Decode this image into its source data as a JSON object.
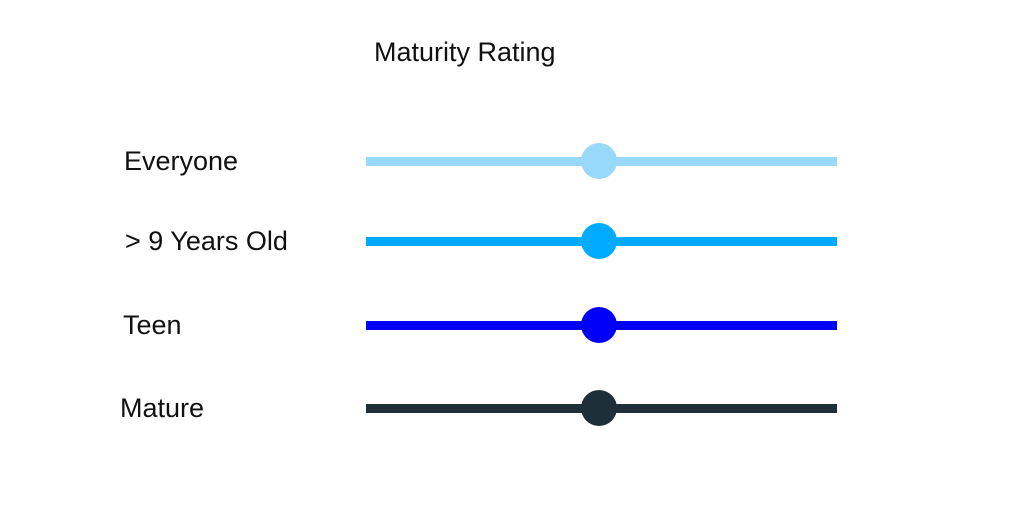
{
  "title": "Maturity Rating",
  "sliders": [
    {
      "label": "Everyone",
      "color": "#98d8f8",
      "value": 0.495
    },
    {
      "label": "> 9 Years Old",
      "color": "#00aaff",
      "value": 0.495
    },
    {
      "label": "Teen",
      "color": "#0000f8",
      "value": 0.495
    },
    {
      "label": "Mature",
      "color": "#1e2f3a",
      "value": 0.495
    }
  ]
}
